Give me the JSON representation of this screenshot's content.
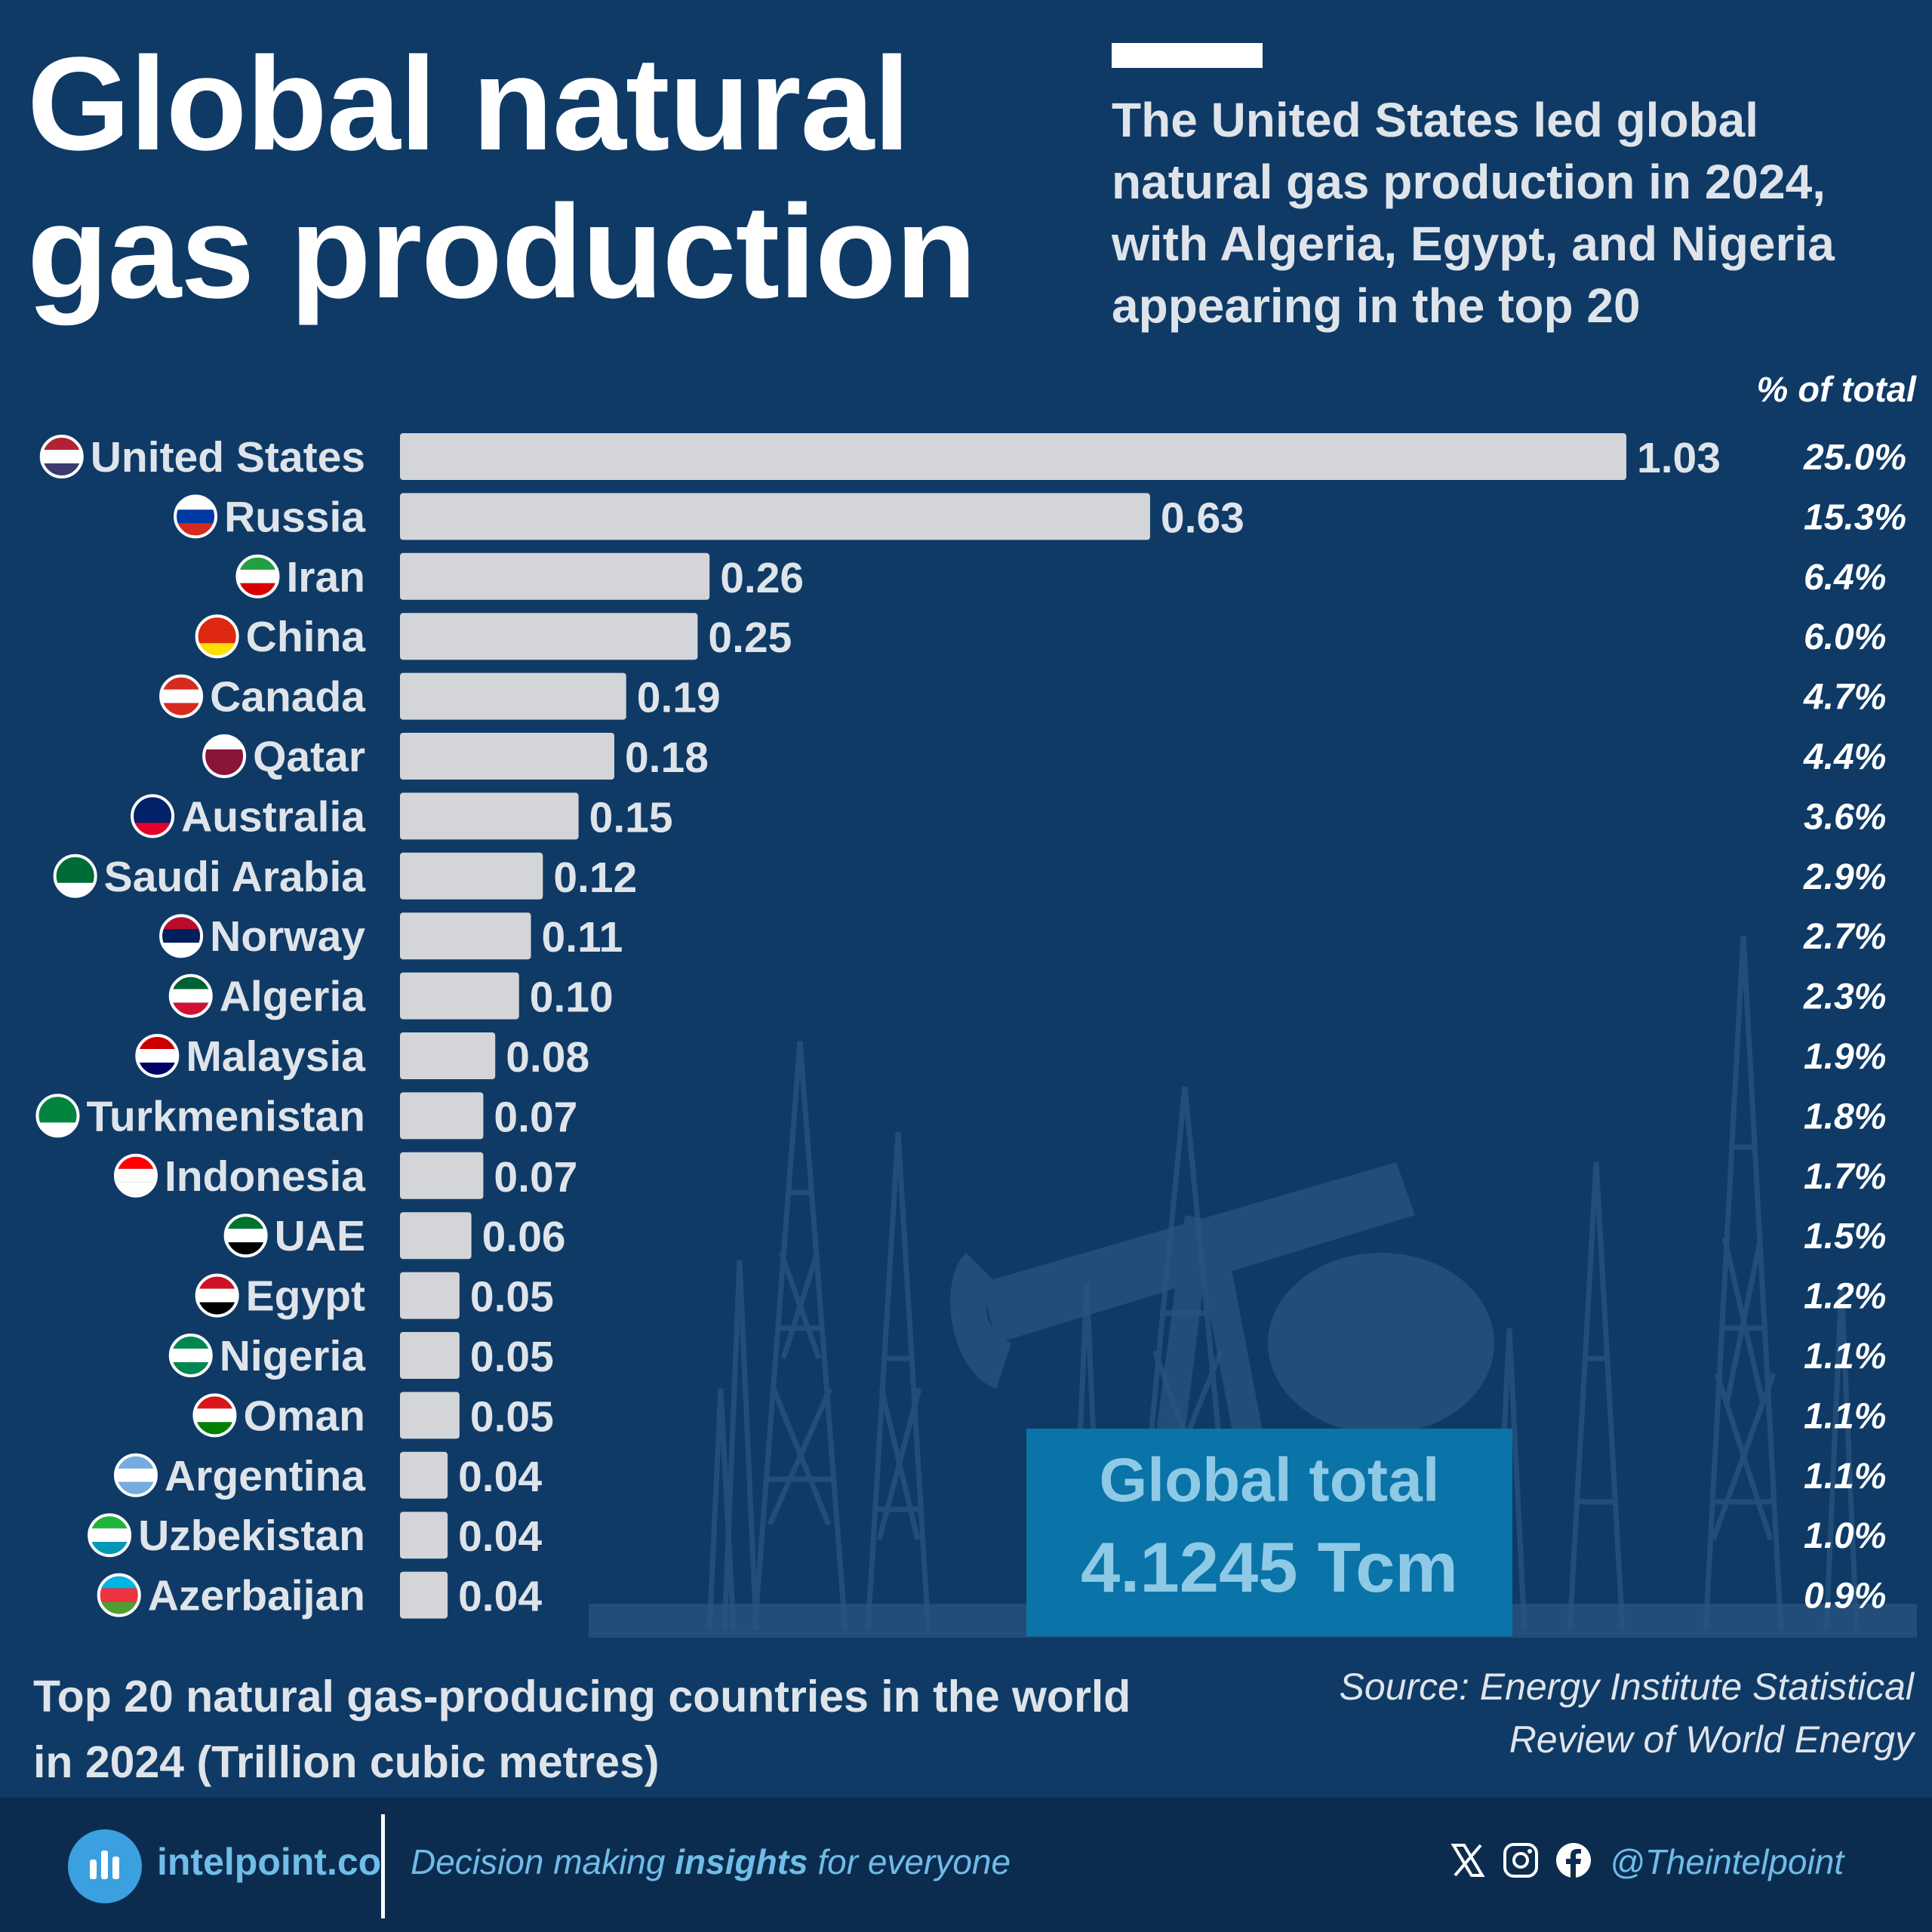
{
  "title_line1": "Global natural",
  "title_line2": "gas production",
  "subtitle": "The United States led global natural gas production in 2024, with Algeria, Egypt, and Nigeria appearing in the top 20",
  "pct_header": "% of total",
  "total_box": {
    "label": "Global total",
    "value": "4.1245 Tcm"
  },
  "caption": "Top 20 natural gas-producing countries in the world in 2024 (Trillion cubic metres)",
  "source": "Source: Energy Institute Statistical Review of World Energy",
  "footer": {
    "brand": "intelpoint.co",
    "tagline_pre": "Decision making ",
    "tagline_bold": "insights",
    "tagline_post": " for everyone",
    "handle": "@Theintelpoint",
    "social_icons": [
      "x-icon",
      "instagram-icon",
      "facebook-icon"
    ]
  },
  "colors": {
    "background": "#0f3a66",
    "bar": "#d4d5d8",
    "total_box": "#0a73a7",
    "footer": "#0c2c4f",
    "accent_text": "#6fbde8"
  },
  "chart_data": {
    "type": "bar",
    "orientation": "horizontal",
    "categories": [
      "United States",
      "Russia",
      "Iran",
      "China",
      "Canada",
      "Qatar",
      "Australia",
      "Saudi Arabia",
      "Norway",
      "Algeria",
      "Malaysia",
      "Turkmenistan",
      "Indonesia",
      "UAE",
      "Egypt",
      "Nigeria",
      "Oman",
      "Argentina",
      "Uzbekistan",
      "Azerbaijan"
    ],
    "values": [
      1.03,
      0.63,
      0.26,
      0.25,
      0.19,
      0.18,
      0.15,
      0.12,
      0.11,
      0.1,
      0.08,
      0.07,
      0.07,
      0.06,
      0.05,
      0.05,
      0.05,
      0.04,
      0.04,
      0.04
    ],
    "value_labels": [
      "1.03",
      "0.63",
      "0.26",
      "0.25",
      "0.19",
      "0.18",
      "0.15",
      "0.12",
      "0.11",
      "0.10",
      "0.08",
      "0.07",
      "0.07",
      "0.06",
      "0.05",
      "0.05",
      "0.05",
      "0.04",
      "0.04",
      "0.04"
    ],
    "percent_labels": [
      "25.0%",
      "15.3%",
      "6.4%",
      "6.0%",
      "4.7%",
      "4.4%",
      "3.6%",
      "2.9%",
      "2.7%",
      "2.3%",
      "1.9%",
      "1.8%",
      "1.7%",
      "1.5%",
      "1.2%",
      "1.1%",
      "1.1%",
      "1.1%",
      "1.0%",
      "0.9%"
    ],
    "flag_colors": [
      [
        "#b22234",
        "#ffffff",
        "#3c3b6e"
      ],
      [
        "#ffffff",
        "#0039a6",
        "#d52b1e"
      ],
      [
        "#239f40",
        "#ffffff",
        "#da0000"
      ],
      [
        "#de2910",
        "#de2910",
        "#ffde00"
      ],
      [
        "#d52b1e",
        "#ffffff",
        "#d52b1e"
      ],
      [
        "#ffffff",
        "#8a1538",
        "#8a1538"
      ],
      [
        "#012169",
        "#012169",
        "#e4002b"
      ],
      [
        "#006c35",
        "#006c35",
        "#ffffff"
      ],
      [
        "#ba0c2f",
        "#00205b",
        "#ffffff"
      ],
      [
        "#006233",
        "#ffffff",
        "#d21034"
      ],
      [
        "#cc0001",
        "#ffffff",
        "#010066"
      ],
      [
        "#00843d",
        "#00843d",
        "#ffffff"
      ],
      [
        "#ff0000",
        "#ffffff",
        "#ffffff"
      ],
      [
        "#00732f",
        "#ffffff",
        "#000000"
      ],
      [
        "#ce1126",
        "#ffffff",
        "#000000"
      ],
      [
        "#008751",
        "#ffffff",
        "#008751"
      ],
      [
        "#db161b",
        "#ffffff",
        "#008000"
      ],
      [
        "#74acdf",
        "#ffffff",
        "#74acdf"
      ],
      [
        "#1eb53a",
        "#ffffff",
        "#0099b5"
      ],
      [
        "#00b5e2",
        "#ef3340",
        "#509e2f"
      ]
    ],
    "xlim": [
      0,
      1.03
    ],
    "grid": false,
    "legend": "none"
  }
}
